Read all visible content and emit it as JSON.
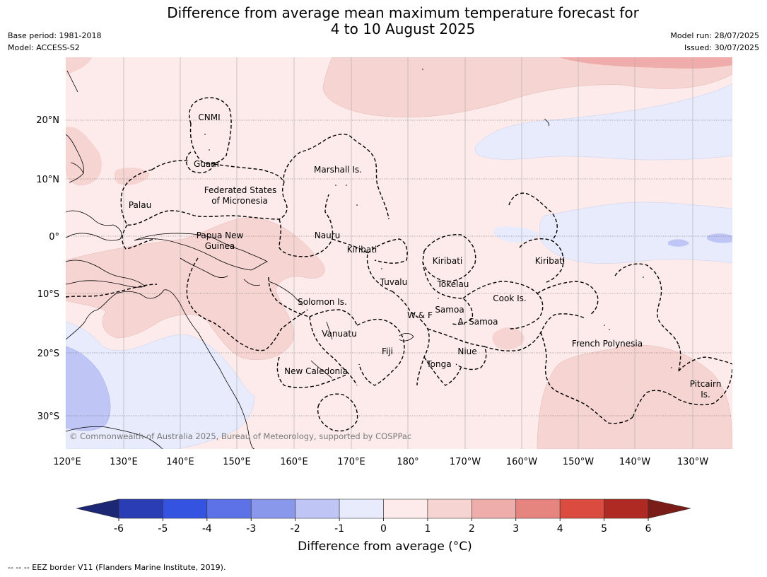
{
  "title_line1": "Difference from average mean maximum temperature forecast for",
  "title_line2": "4 to 10 August 2025",
  "base_period": "Base period: 1981-2018",
  "model": "Model: ACCESS-S2",
  "model_run": "Model run: 28/07/2025",
  "issued": "Issued: 30/07/2025",
  "copyright": "© Commonwealth of Australia 2025, Bureau of Meteorology, supported by COSPPac",
  "lon_ticks": [
    "120°E",
    "130°E",
    "140°E",
    "150°E",
    "160°E",
    "170°E",
    "180°",
    "170°W",
    "160°W",
    "150°W",
    "140°W",
    "130°W"
  ],
  "lat_ticks": [
    "20°N",
    "10°N",
    "0°",
    "10°S",
    "20°S",
    "30°S"
  ],
  "region_labels": [
    "CNMI",
    "Guam",
    "Marshall Is.",
    "Federated States",
    "of Micronesia",
    "Palau",
    "Papua New",
    "Guinea",
    "Nauru",
    "Kiribati",
    "Kiribati",
    "Kiribati",
    "Tuvalu",
    "Tokelau",
    "Solomon Is.",
    "W & F",
    "Samoa",
    "A. Samoa",
    "Cook Is.",
    "Vanuatu",
    "Fiji",
    "Niue",
    "Tonga",
    "French Polynesia",
    "New Caledonia",
    "Pitcairn",
    "Is."
  ],
  "colorbar": {
    "label": "Difference from average (°C)",
    "ticks": [
      "-6",
      "-5",
      "-4",
      "-3",
      "-2",
      "-1",
      "0",
      "1",
      "2",
      "3",
      "4",
      "5",
      "6"
    ],
    "colors": [
      "#2a3db5",
      "#3353e0",
      "#5c72e6",
      "#8a98ec",
      "#bfc6f5",
      "#e7ebfb",
      "#fcebea",
      "#f6d4d2",
      "#eeadab",
      "#e6847f",
      "#db4b40",
      "#ae2a22"
    ],
    "under_color": "#1c2776",
    "over_color": "#7a1c18"
  },
  "footnote": "--  --  -- EEZ border V11 (Flanders Marine Institute, 2019)."
}
